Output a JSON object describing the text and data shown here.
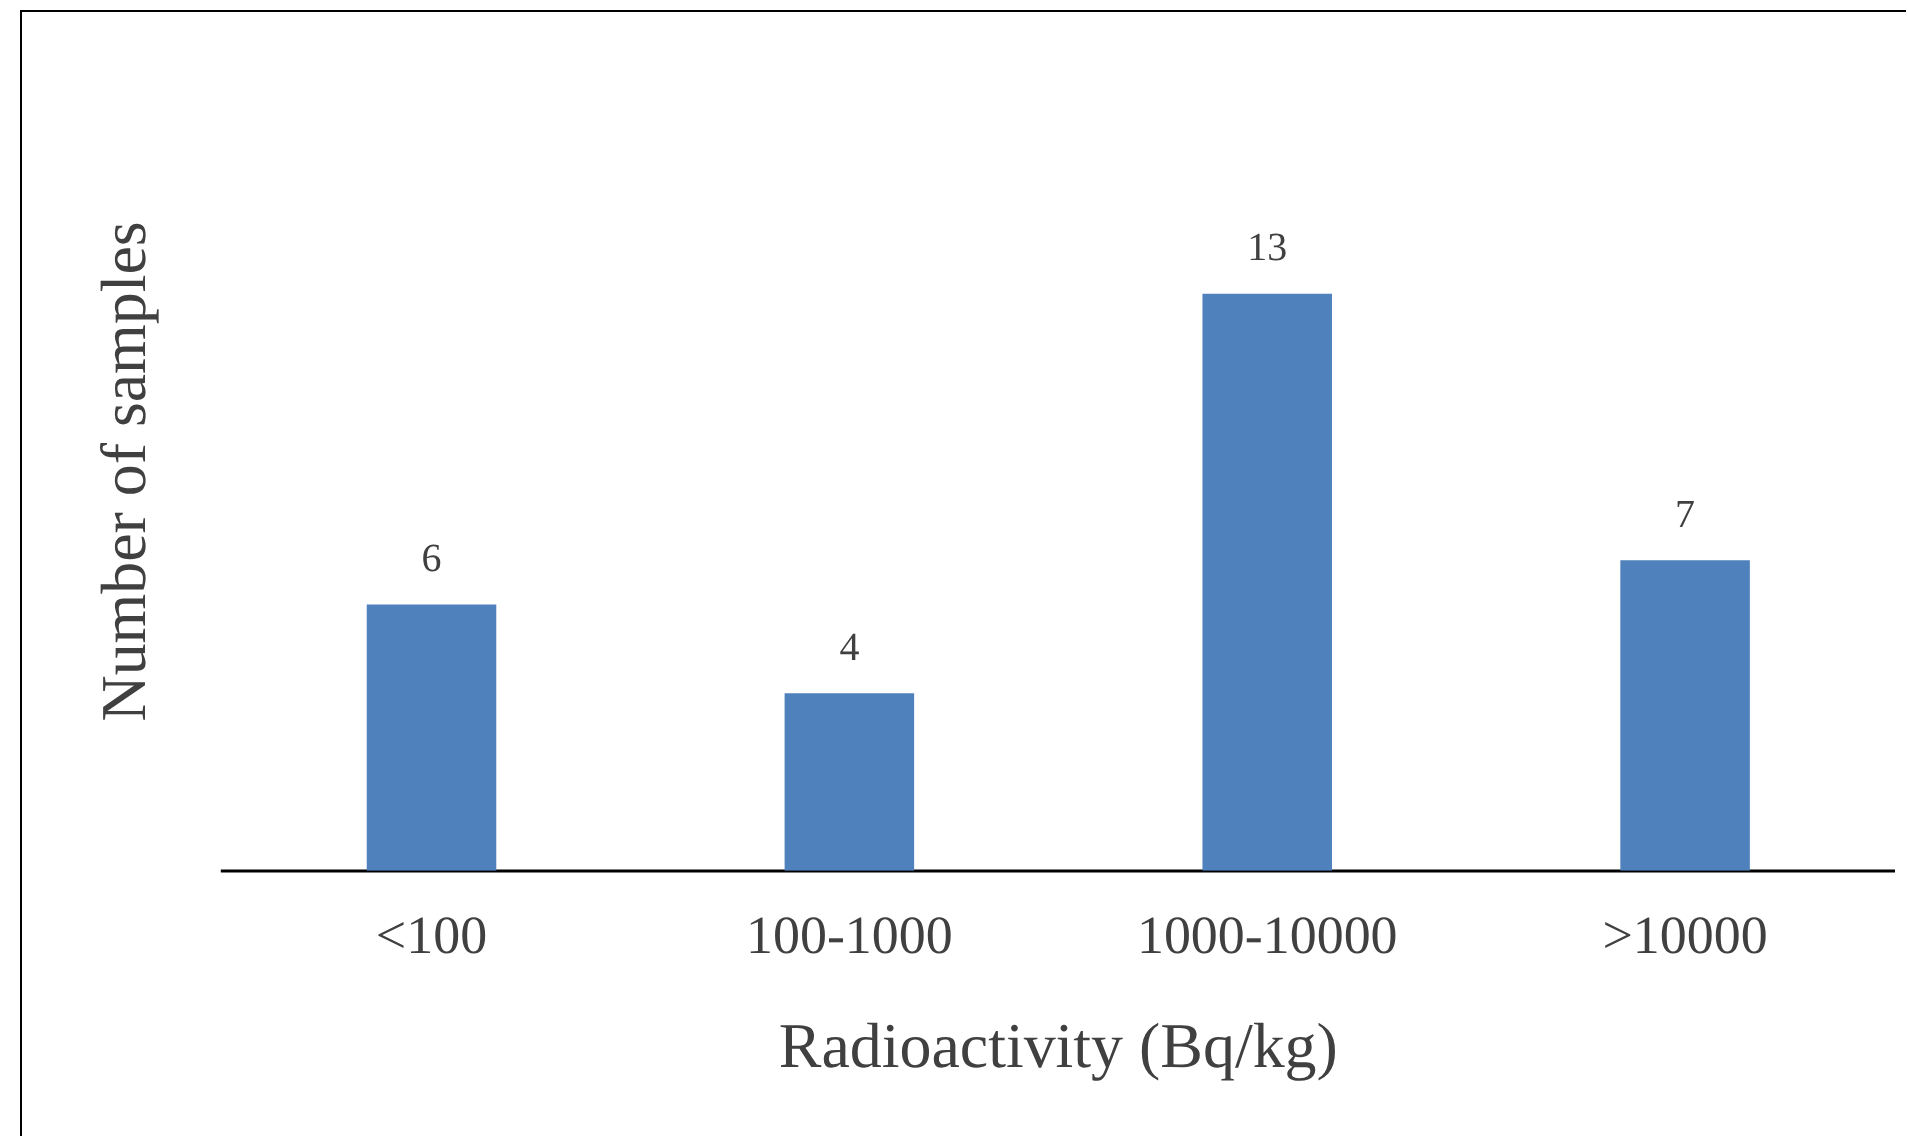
{
  "chart_data": {
    "type": "bar",
    "xlabel": "Radioactivity (Bq/kg)",
    "ylabel": "Number of samples",
    "categories": [
      "<100",
      "100-1000",
      "1000-10000",
      ">10000"
    ],
    "values": [
      6,
      4,
      13,
      7
    ],
    "color": "#4f81bd",
    "data_labels": true,
    "grid": false,
    "legend": false
  }
}
